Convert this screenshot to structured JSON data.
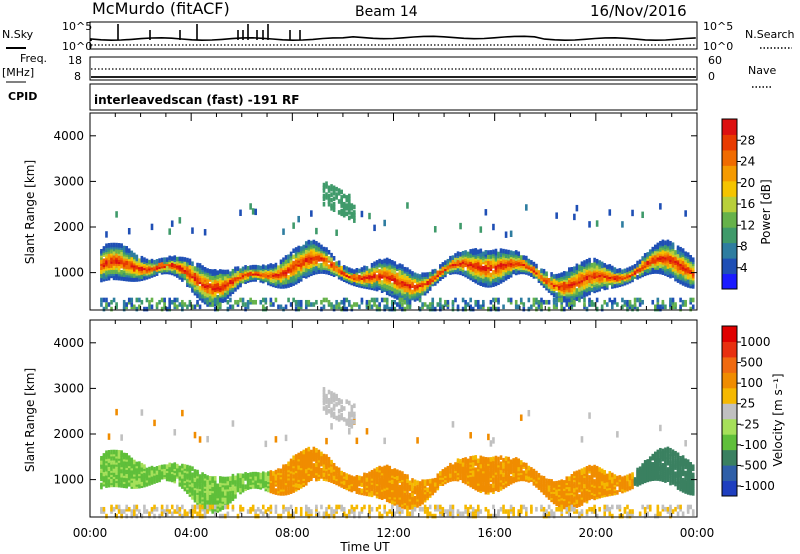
{
  "header": {
    "station": "McMurdo (fitACF)",
    "beam": "Beam 14",
    "date": "16/Nov/2016"
  },
  "top_panels": {
    "nsky_label": "N.Sky",
    "nsky_ticks": [
      "10^5",
      "10^0"
    ],
    "nsearch_label": "N.Search",
    "nsearch_ticks": [
      "10^5",
      "10^0"
    ],
    "freq_label": "Freq.",
    "freq_unit": "[MHz]",
    "freq_ticks": [
      "18",
      "8"
    ],
    "nave_label": "Nave",
    "nave_ticks": [
      "60",
      "0"
    ],
    "cpid_label": "CPID",
    "cpid_text": "interleavedscan (fast) -191 RF"
  },
  "chart_data": [
    {
      "type": "heatmap",
      "panel": "power",
      "ylabel": "Slant Range [km]",
      "x_ticks": [
        "00:00",
        "04:00",
        "08:00",
        "12:00",
        "16:00",
        "20:00",
        "00:00"
      ],
      "y_ticks": [
        1000,
        2000,
        3000,
        4000
      ],
      "ylim": [
        180,
        4500
      ],
      "xlim_hours": [
        0,
        24
      ],
      "colorbar": {
        "label": "Power [dB]",
        "ticks": [
          4,
          8,
          12,
          16,
          20,
          24,
          28
        ],
        "range": [
          0,
          32
        ],
        "colors": [
          "#1b1bff",
          "#1f4fb5",
          "#2e7da0",
          "#3f9a6a",
          "#66b24a",
          "#b8cf3a",
          "#f5c400",
          "#f59a00",
          "#f06b00",
          "#e83a00",
          "#dd1010"
        ]
      }
    },
    {
      "type": "heatmap",
      "panel": "velocity",
      "ylabel": "Slant Range [km]",
      "xlabel": "Time UT",
      "x_ticks": [
        "00:00",
        "04:00",
        "08:00",
        "12:00",
        "16:00",
        "20:00",
        "00:00"
      ],
      "y_ticks": [
        1000,
        2000,
        3000,
        4000
      ],
      "ylim": [
        180,
        4500
      ],
      "xlim_hours": [
        0,
        24
      ],
      "colorbar": {
        "label": "Velocity [m s⁻¹]",
        "ticks": [
          "1000",
          "500",
          "100",
          "25",
          "-25",
          "-100",
          "-500",
          "-1000"
        ],
        "colors": [
          "#1f3fbf",
          "#2f5fa8",
          "#3a8060",
          "#5fbf3a",
          "#a6e05a",
          "#c0c0c0",
          "#f5b800",
          "#f08c00",
          "#f06a10",
          "#e83010",
          "#e00000"
        ]
      }
    }
  ]
}
